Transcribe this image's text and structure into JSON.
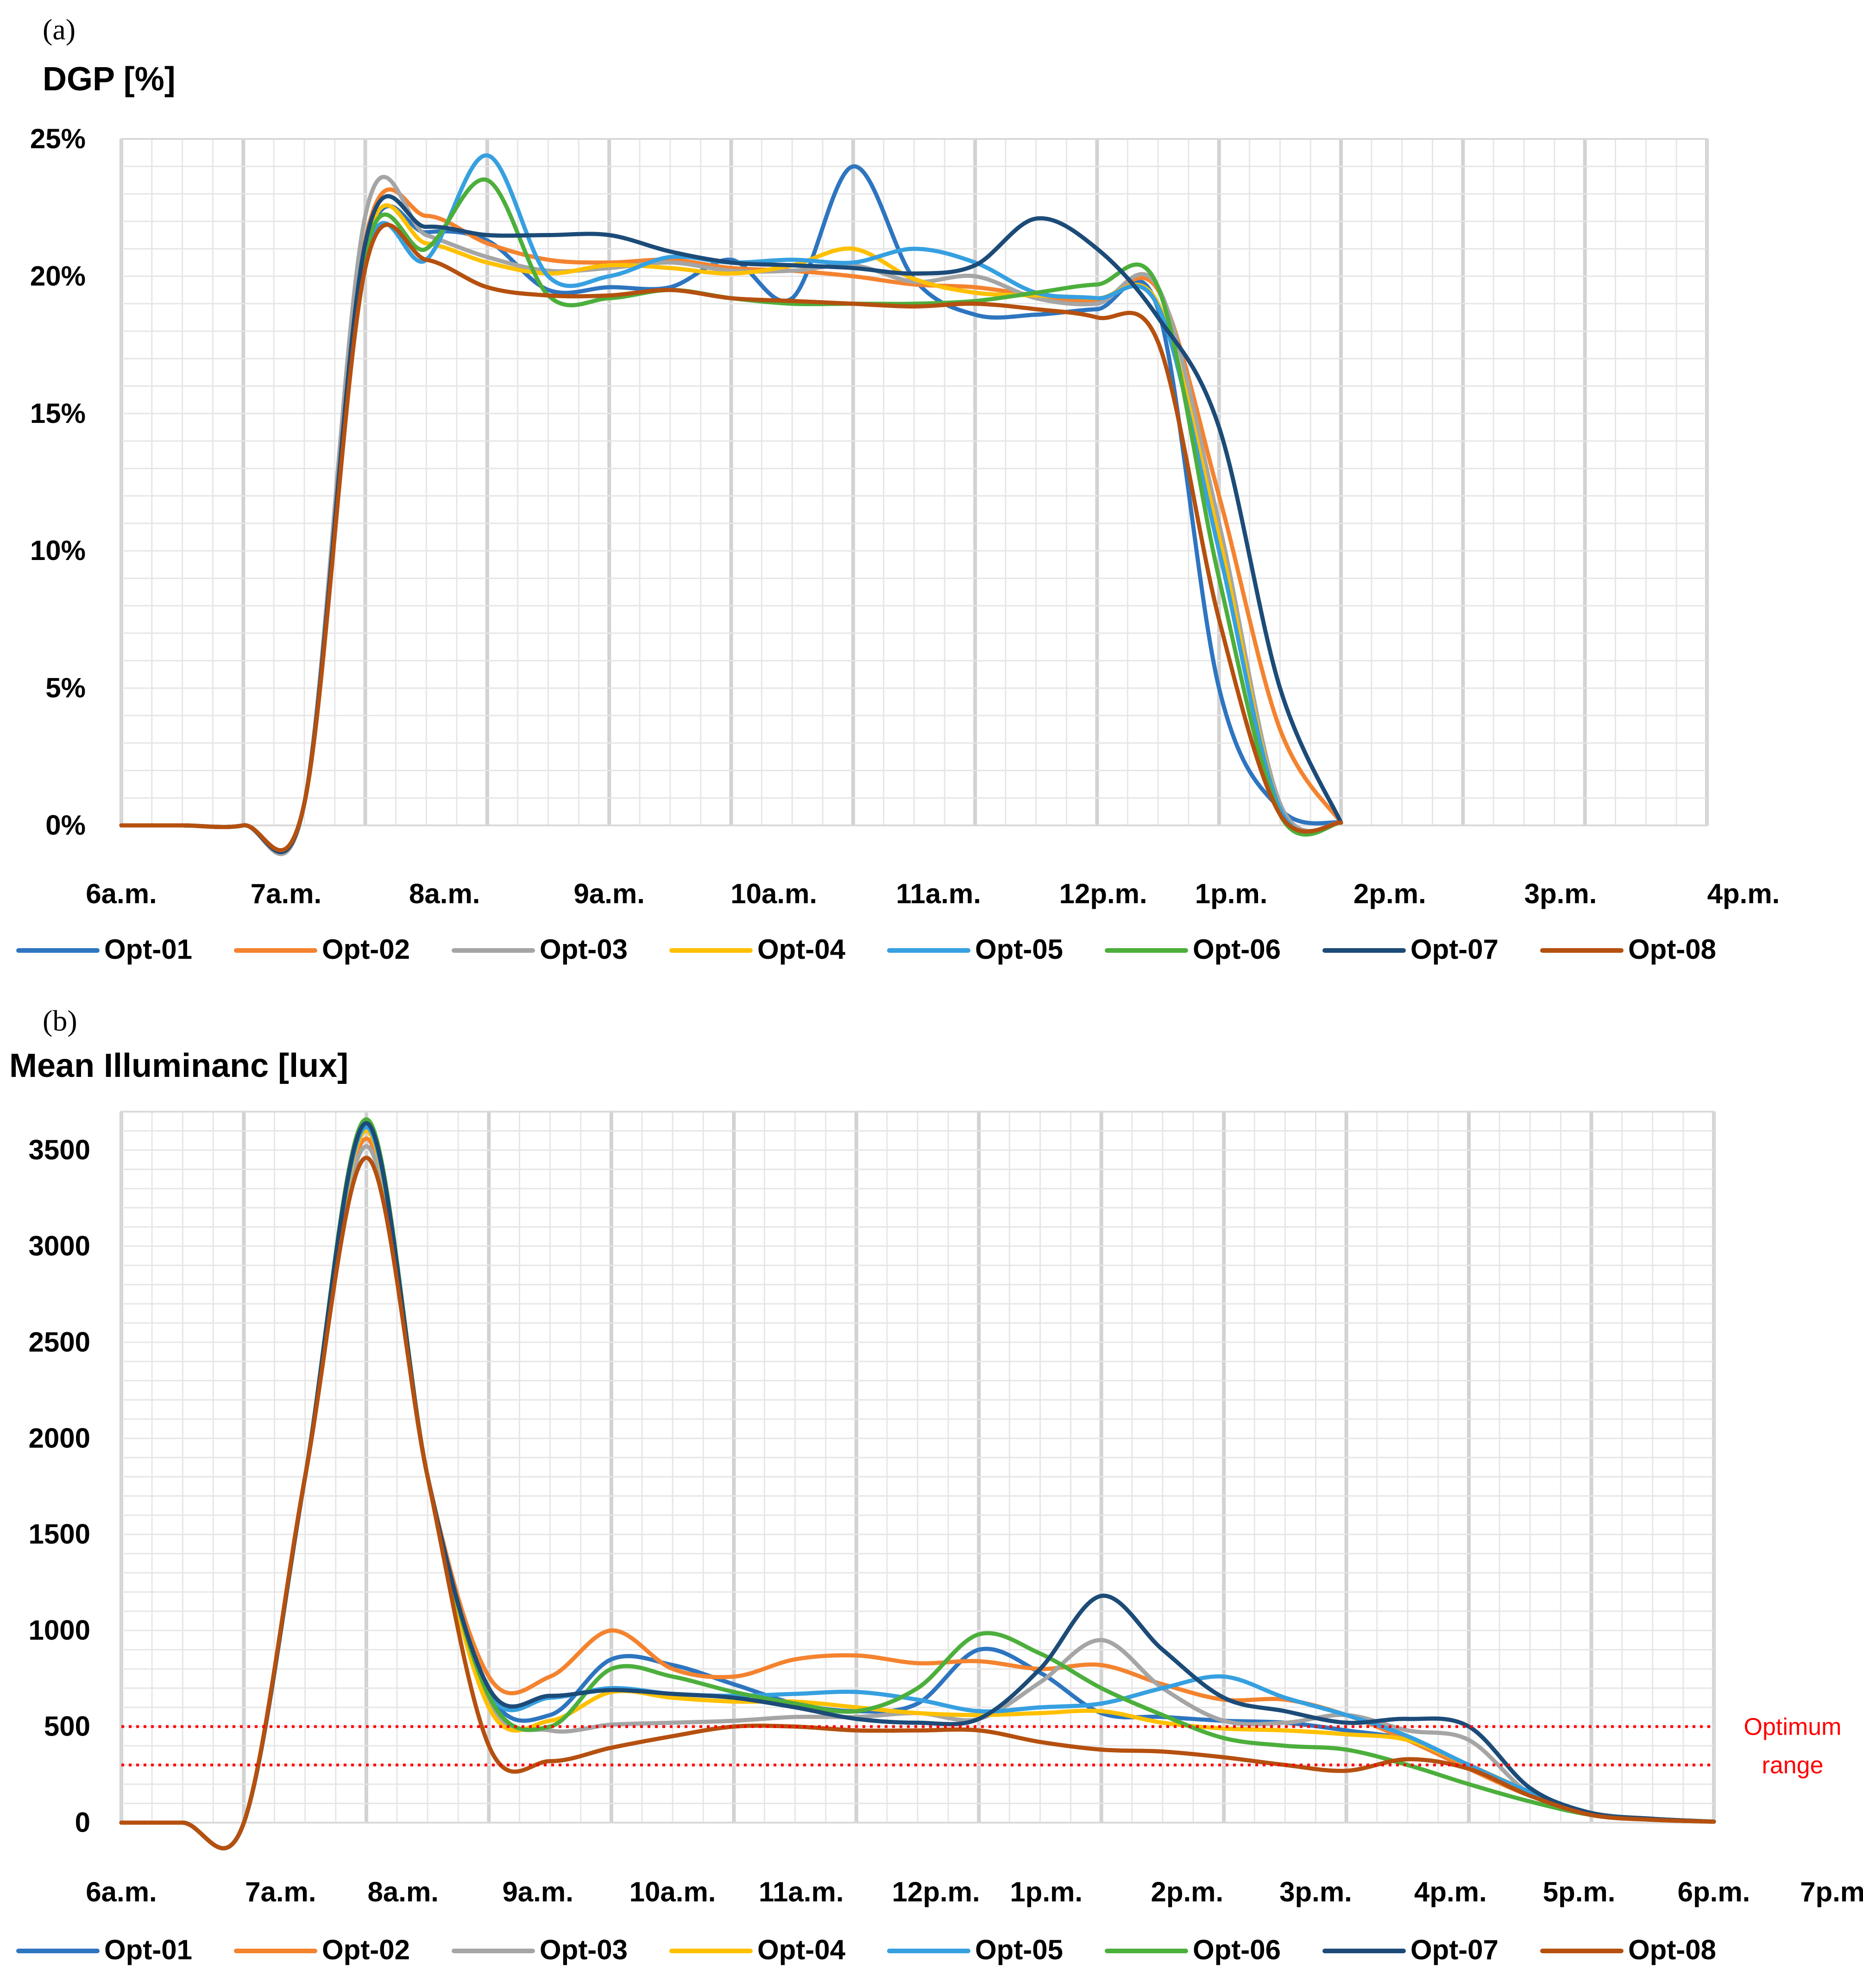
{
  "colors": {
    "Opt-01": "#2e75c0",
    "Opt-02": "#f4832f",
    "Opt-03": "#a5a5a5",
    "Opt-04": "#ffc000",
    "Opt-05": "#36a0e0",
    "Opt-06": "#4caf3c",
    "Opt-07": "#1c4b78",
    "Opt-08": "#b5500f",
    "optimum": "#ff0000"
  },
  "chart_data": [
    {
      "panel": "(a)",
      "type": "line",
      "title": "DGP [%]",
      "xlabel": "",
      "ylabel": "DGP [%]",
      "ylim": [
        0,
        25
      ],
      "yticks": [
        "0%",
        "5%",
        "10%",
        "15%",
        "20%",
        "25%"
      ],
      "ytick_values": [
        0,
        5,
        10,
        15,
        20,
        25
      ],
      "xticks": [
        "6a.m.",
        "7a.m.",
        "8a.m.",
        "9a.m.",
        "10a.m.",
        "11a.m.",
        "12p.m.",
        "1p.m.",
        "2p.m.",
        "3p.m.",
        "4p.m."
      ],
      "x": [
        6,
        6.5,
        7,
        7.5,
        8,
        8.5,
        9,
        9.5,
        10,
        10.5,
        11,
        11.5,
        12,
        12.5,
        13,
        13.5,
        14,
        14.5,
        15,
        15.5,
        16,
        16.5,
        17,
        17.5,
        18,
        18.5,
        19
      ],
      "grid": true,
      "legend": "bottom",
      "series": [
        {
          "name": "Opt-01",
          "values": [
            0,
            0,
            0,
            0.8,
            20.8,
            21.6,
            21.3,
            19.5,
            19.6,
            19.6,
            20.6,
            19.2,
            24.0,
            19.9,
            18.6,
            18.6,
            18.8,
            18.8,
            5,
            0.6,
            0.1,
            null,
            null,
            null,
            null,
            null,
            null
          ]
        },
        {
          "name": "Opt-02",
          "values": [
            0,
            0,
            0,
            0.8,
            21.3,
            22.2,
            21.2,
            20.6,
            20.5,
            20.6,
            20.3,
            20.2,
            20.0,
            19.7,
            19.6,
            19.3,
            19.1,
            19.5,
            12,
            3.5,
            0.1,
            null,
            null,
            null,
            null,
            null,
            null
          ]
        },
        {
          "name": "Opt-03",
          "values": [
            0,
            0,
            0,
            0.8,
            22.2,
            21.5,
            20.7,
            20.2,
            20.3,
            20.5,
            20.2,
            20.2,
            20.4,
            19.8,
            20.0,
            19.2,
            19.0,
            19.6,
            11,
            0.8,
            0.1,
            null,
            null,
            null,
            null,
            null,
            null
          ]
        },
        {
          "name": "Opt-04",
          "values": [
            0,
            0,
            0,
            0.8,
            21.0,
            21.2,
            20.5,
            20.1,
            20.4,
            20.3,
            20.1,
            20.4,
            21.0,
            19.9,
            19.4,
            19.3,
            19.2,
            19.0,
            10.5,
            0.6,
            0.1,
            null,
            null,
            null,
            null,
            null,
            null
          ]
        },
        {
          "name": "Opt-05",
          "values": [
            0,
            0,
            0,
            0.8,
            20.6,
            20.6,
            24.4,
            20.0,
            20.0,
            20.7,
            20.5,
            20.6,
            20.5,
            21.0,
            20.5,
            19.4,
            19.2,
            18.9,
            10,
            0.6,
            0.1,
            null,
            null,
            null,
            null,
            null,
            null
          ]
        },
        {
          "name": "Opt-06",
          "values": [
            0,
            0,
            0,
            0.8,
            20.8,
            21.0,
            23.5,
            19.3,
            19.2,
            19.5,
            19.2,
            19.0,
            19.0,
            19.0,
            19.1,
            19.4,
            19.7,
            19.6,
            9,
            0.4,
            0.1,
            null,
            null,
            null,
            null,
            null,
            null
          ]
        },
        {
          "name": "Opt-07",
          "values": [
            0,
            0,
            0,
            0.8,
            21.2,
            21.8,
            21.5,
            21.5,
            21.5,
            20.9,
            20.5,
            20.4,
            20.3,
            20.1,
            20.4,
            22.1,
            21.0,
            18.5,
            14.5,
            5,
            0.1,
            null,
            null,
            null,
            null,
            null,
            null
          ]
        },
        {
          "name": "Opt-08",
          "values": [
            0,
            0,
            0,
            0.8,
            20.3,
            20.6,
            19.6,
            19.3,
            19.3,
            19.5,
            19.2,
            19.1,
            19.0,
            18.9,
            19.0,
            18.8,
            18.5,
            17.6,
            7.5,
            0.4,
            0.1,
            null,
            null,
            null,
            null,
            null,
            null
          ]
        }
      ]
    },
    {
      "panel": "(b)",
      "type": "line",
      "title": "Mean Illuminanc [lux]",
      "xlabel": "",
      "ylabel": "Mean Illuminanc [lux]",
      "ylim": [
        0,
        3700
      ],
      "yticks": [
        "0",
        "500",
        "1000",
        "1500",
        "2000",
        "2500",
        "3000",
        "3500"
      ],
      "ytick_values": [
        0,
        500,
        1000,
        1500,
        2000,
        2500,
        3000,
        3500
      ],
      "xticks": [
        "6a.m.",
        "7a.m.",
        "8a.m.",
        "9a.m.",
        "10a.m.",
        "11a.m.",
        "12p.m.",
        "1p.m.",
        "2p.m.",
        "3p.m.",
        "4p.m.",
        "5p.m.",
        "6p.m.",
        "7p.m."
      ],
      "x": [
        6,
        6.5,
        7,
        7.5,
        8,
        8.5,
        9,
        9.5,
        10,
        10.5,
        11,
        11.5,
        12,
        12.5,
        13,
        13.5,
        14,
        14.5,
        15,
        15.5,
        16,
        16.5,
        17,
        17.5,
        18,
        18.5,
        19
      ],
      "grid": true,
      "legend": "bottom",
      "optimum_range": {
        "lower": 300,
        "upper": 500,
        "label_line1": "Optimum",
        "label_line2": "range"
      },
      "series": [
        {
          "name": "Opt-01",
          "values": [
            0,
            0,
            0,
            1800,
            3620,
            1800,
            680,
            560,
            850,
            820,
            720,
            620,
            580,
            620,
            900,
            780,
            570,
            550,
            530,
            520,
            480,
            430,
            300,
            160,
            50,
            20,
            5
          ]
        },
        {
          "name": "Opt-02",
          "values": [
            0,
            0,
            0,
            1800,
            3560,
            1800,
            760,
            760,
            1000,
            800,
            760,
            850,
            870,
            830,
            840,
            800,
            820,
            720,
            640,
            640,
            560,
            430,
            280,
            140,
            50,
            20,
            5
          ]
        },
        {
          "name": "Opt-03",
          "values": [
            0,
            0,
            0,
            1800,
            3520,
            1800,
            640,
            480,
            510,
            520,
            530,
            550,
            550,
            570,
            540,
            730,
            950,
            700,
            530,
            520,
            560,
            480,
            430,
            150,
            50,
            20,
            5
          ]
        },
        {
          "name": "Opt-04",
          "values": [
            0,
            0,
            0,
            1800,
            3600,
            1800,
            600,
            530,
            680,
            650,
            630,
            630,
            600,
            570,
            560,
            570,
            580,
            520,
            490,
            480,
            460,
            430,
            300,
            160,
            50,
            20,
            5
          ]
        },
        {
          "name": "Opt-05",
          "values": [
            0,
            0,
            0,
            1800,
            3620,
            1800,
            680,
            650,
            700,
            670,
            660,
            670,
            680,
            640,
            580,
            600,
            620,
            700,
            760,
            650,
            560,
            450,
            300,
            160,
            50,
            20,
            5
          ]
        },
        {
          "name": "Opt-06",
          "values": [
            0,
            0,
            0,
            1800,
            3660,
            1800,
            660,
            500,
            800,
            760,
            680,
            620,
            580,
            700,
            980,
            880,
            700,
            560,
            440,
            400,
            380,
            300,
            200,
            110,
            40,
            15,
            5
          ]
        },
        {
          "name": "Opt-07",
          "values": [
            0,
            0,
            0,
            1800,
            3640,
            1800,
            700,
            660,
            690,
            670,
            650,
            600,
            540,
            520,
            540,
            800,
            1180,
            900,
            650,
            580,
            520,
            540,
            500,
            180,
            50,
            20,
            5
          ]
        },
        {
          "name": "Opt-08",
          "values": [
            0,
            0,
            0,
            1800,
            3460,
            1800,
            400,
            320,
            390,
            450,
            500,
            500,
            480,
            480,
            480,
            420,
            380,
            370,
            340,
            300,
            270,
            330,
            280,
            140,
            40,
            15,
            5
          ]
        }
      ]
    }
  ]
}
